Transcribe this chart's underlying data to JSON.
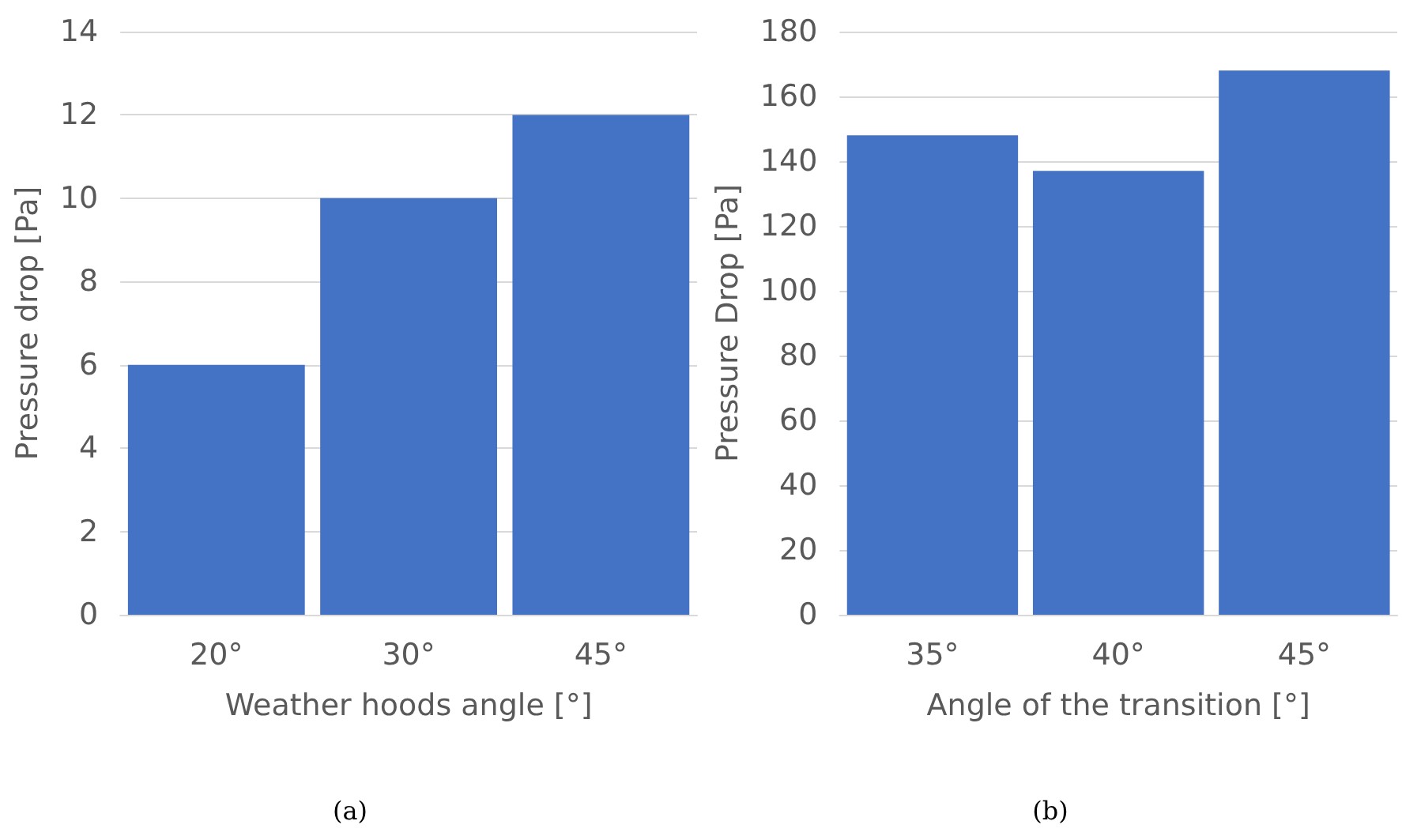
{
  "chart_data": [
    {
      "type": "bar",
      "categories": [
        "20°",
        "30°",
        "45°"
      ],
      "values": [
        6,
        10,
        12
      ],
      "color": "#4472c4",
      "xlabel": "Weather hoods angle [°]",
      "ylabel": "Pressure drop [Pa]",
      "ylim": [
        0,
        14
      ],
      "yticks": [
        0,
        2,
        4,
        6,
        8,
        10,
        12,
        14
      ],
      "grid": "y",
      "annotations": [
        "(a)"
      ]
    },
    {
      "type": "bar",
      "categories": [
        "35°",
        "40°",
        "45°"
      ],
      "values": [
        148,
        137,
        168
      ],
      "color": "#4472c4",
      "xlabel": "Angle of the transition [°]",
      "ylabel": "Pressure Drop [Pa]",
      "ylim": [
        0,
        180
      ],
      "yticks": [
        0,
        20,
        40,
        60,
        80,
        100,
        120,
        140,
        160,
        180
      ],
      "grid": "y",
      "annotations": [
        "(b)"
      ]
    }
  ]
}
